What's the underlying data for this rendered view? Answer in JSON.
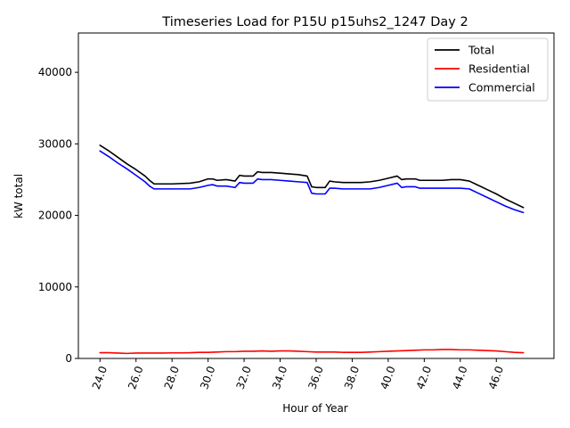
{
  "chart_data": {
    "type": "line",
    "title": "Timeseries Load for P15U p15uhs2_1247  Day 2",
    "xlabel": "Hour of Year",
    "ylabel": "kW total",
    "xlim": [
      22.8,
      49.2
    ],
    "ylim": [
      0,
      45500
    ],
    "x_ticks": [
      24,
      26,
      28,
      30,
      32,
      34,
      36,
      38,
      40,
      42,
      44,
      46
    ],
    "x_tick_labels": [
      "24.0",
      "26.0",
      "28.0",
      "30.0",
      "32.0",
      "34.0",
      "36.0",
      "38.0",
      "40.0",
      "42.0",
      "44.0",
      "46.0"
    ],
    "y_ticks": [
      0,
      10000,
      20000,
      30000,
      40000
    ],
    "y_tick_labels": [
      "0",
      "10000",
      "20000",
      "30000",
      "40000"
    ],
    "grid": false,
    "legend_position": "top-right",
    "series": [
      {
        "name": "Total",
        "color": "#000000",
        "points": [
          [
            24.0,
            29800
          ],
          [
            24.5,
            29000
          ],
          [
            25.0,
            28100
          ],
          [
            25.5,
            27200
          ],
          [
            26.0,
            26400
          ],
          [
            26.5,
            25500
          ],
          [
            26.75,
            24900
          ],
          [
            27.0,
            24400
          ],
          [
            28.0,
            24400
          ],
          [
            29.0,
            24500
          ],
          [
            29.5,
            24700
          ],
          [
            30.0,
            25100
          ],
          [
            30.25,
            25100
          ],
          [
            30.5,
            24900
          ],
          [
            31.0,
            25000
          ],
          [
            31.5,
            24800
          ],
          [
            31.75,
            25600
          ],
          [
            32.0,
            25500
          ],
          [
            32.5,
            25500
          ],
          [
            32.75,
            26100
          ],
          [
            33.0,
            26000
          ],
          [
            33.5,
            26000
          ],
          [
            34.0,
            25900
          ],
          [
            34.5,
            25800
          ],
          [
            35.0,
            25700
          ],
          [
            35.5,
            25500
          ],
          [
            35.75,
            24000
          ],
          [
            36.0,
            23900
          ],
          [
            36.5,
            23900
          ],
          [
            36.75,
            24800
          ],
          [
            37.0,
            24700
          ],
          [
            37.5,
            24600
          ],
          [
            38.0,
            24600
          ],
          [
            38.5,
            24600
          ],
          [
            39.0,
            24700
          ],
          [
            39.5,
            24900
          ],
          [
            40.0,
            25200
          ],
          [
            40.5,
            25500
          ],
          [
            40.75,
            25000
          ],
          [
            41.0,
            25100
          ],
          [
            41.5,
            25100
          ],
          [
            41.75,
            24900
          ],
          [
            42.0,
            24900
          ],
          [
            42.5,
            24900
          ],
          [
            43.0,
            24900
          ],
          [
            43.5,
            25000
          ],
          [
            44.0,
            25000
          ],
          [
            44.5,
            24800
          ],
          [
            45.0,
            24200
          ],
          [
            45.5,
            23600
          ],
          [
            46.0,
            23000
          ],
          [
            46.5,
            22300
          ],
          [
            47.0,
            21700
          ],
          [
            47.5,
            21100
          ]
        ]
      },
      {
        "name": "Residential",
        "color": "#ff0000",
        "points": [
          [
            24.0,
            800
          ],
          [
            24.5,
            800
          ],
          [
            25.0,
            750
          ],
          [
            25.5,
            700
          ],
          [
            26.0,
            750
          ],
          [
            26.5,
            750
          ],
          [
            27.0,
            750
          ],
          [
            27.5,
            750
          ],
          [
            28.0,
            780
          ],
          [
            28.5,
            780
          ],
          [
            29.0,
            800
          ],
          [
            29.5,
            850
          ],
          [
            30.0,
            850
          ],
          [
            30.5,
            900
          ],
          [
            31.0,
            950
          ],
          [
            31.5,
            950
          ],
          [
            32.0,
            1000
          ],
          [
            32.5,
            1000
          ],
          [
            33.0,
            1050
          ],
          [
            33.5,
            1000
          ],
          [
            34.0,
            1050
          ],
          [
            34.5,
            1050
          ],
          [
            35.0,
            1000
          ],
          [
            35.5,
            950
          ],
          [
            36.0,
            900
          ],
          [
            36.5,
            900
          ],
          [
            37.0,
            900
          ],
          [
            37.5,
            850
          ],
          [
            38.0,
            850
          ],
          [
            38.5,
            850
          ],
          [
            39.0,
            900
          ],
          [
            39.5,
            950
          ],
          [
            40.0,
            1000
          ],
          [
            40.5,
            1050
          ],
          [
            41.0,
            1100
          ],
          [
            41.5,
            1150
          ],
          [
            42.0,
            1200
          ],
          [
            42.5,
            1200
          ],
          [
            43.0,
            1250
          ],
          [
            43.5,
            1250
          ],
          [
            44.0,
            1200
          ],
          [
            44.5,
            1200
          ],
          [
            45.0,
            1150
          ],
          [
            45.5,
            1100
          ],
          [
            46.0,
            1050
          ],
          [
            46.5,
            950
          ],
          [
            47.0,
            850
          ],
          [
            47.5,
            800
          ]
        ]
      },
      {
        "name": "Commercial",
        "color": "#0000ff",
        "points": [
          [
            24.0,
            29000
          ],
          [
            24.5,
            28200
          ],
          [
            25.0,
            27300
          ],
          [
            25.5,
            26500
          ],
          [
            26.0,
            25600
          ],
          [
            26.5,
            24700
          ],
          [
            26.75,
            24100
          ],
          [
            27.0,
            23700
          ],
          [
            28.0,
            23700
          ],
          [
            29.0,
            23700
          ],
          [
            29.5,
            23900
          ],
          [
            30.0,
            24200
          ],
          [
            30.25,
            24300
          ],
          [
            30.5,
            24100
          ],
          [
            31.0,
            24100
          ],
          [
            31.5,
            23900
          ],
          [
            31.75,
            24600
          ],
          [
            32.0,
            24500
          ],
          [
            32.5,
            24500
          ],
          [
            32.75,
            25100
          ],
          [
            33.0,
            25000
          ],
          [
            33.5,
            25000
          ],
          [
            34.0,
            24900
          ],
          [
            34.5,
            24800
          ],
          [
            35.0,
            24700
          ],
          [
            35.5,
            24600
          ],
          [
            35.75,
            23100
          ],
          [
            36.0,
            23000
          ],
          [
            36.5,
            23000
          ],
          [
            36.75,
            23800
          ],
          [
            37.0,
            23800
          ],
          [
            37.5,
            23700
          ],
          [
            38.0,
            23700
          ],
          [
            38.5,
            23700
          ],
          [
            39.0,
            23700
          ],
          [
            39.5,
            23900
          ],
          [
            40.0,
            24200
          ],
          [
            40.5,
            24500
          ],
          [
            40.75,
            23900
          ],
          [
            41.0,
            24000
          ],
          [
            41.5,
            24000
          ],
          [
            41.75,
            23800
          ],
          [
            42.0,
            23800
          ],
          [
            42.5,
            23800
          ],
          [
            43.0,
            23800
          ],
          [
            43.5,
            23800
          ],
          [
            44.0,
            23800
          ],
          [
            44.5,
            23700
          ],
          [
            45.0,
            23100
          ],
          [
            45.5,
            22500
          ],
          [
            46.0,
            21900
          ],
          [
            46.5,
            21300
          ],
          [
            47.0,
            20800
          ],
          [
            47.5,
            20400
          ]
        ]
      }
    ]
  }
}
